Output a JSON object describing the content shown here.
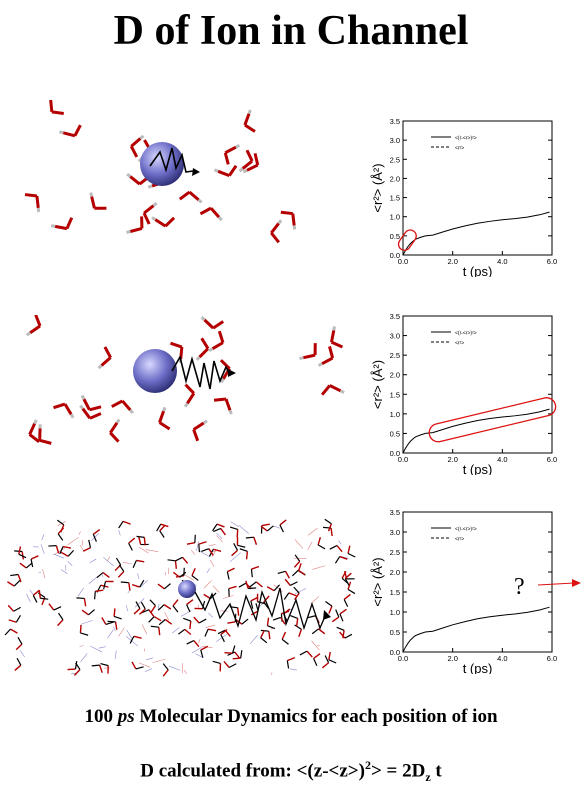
{
  "title": "D of Ion in Channel",
  "caption_line1": {
    "num": "100",
    "ps": "ps",
    "rest": "Molecular Dynamics for each position of ion"
  },
  "caption_line2": {
    "prefix": "D calculated from: <(z-<z>)",
    "sup": "2",
    "mid": "> = 2D",
    "sub": "z",
    "suffix": " t"
  },
  "question_mark": "?",
  "colors": {
    "ion": "#6e6ec8",
    "oxygen": "#b40000",
    "hydrogen": "#bbbbbb",
    "highlight": "#dd1111",
    "arrow": "#dd1111"
  },
  "chart_data": [
    {
      "type": "line",
      "xlabel": "t (ps)",
      "ylabel": "<r²> (Å²)",
      "xlim": [
        0,
        6
      ],
      "ylim": [
        0,
        3.5
      ],
      "xticks": [
        "0.0",
        "2.0",
        "4.0",
        "6.0"
      ],
      "yticks": [
        "0.0",
        "0.5",
        "1.0",
        "1.5",
        "2.0",
        "2.5",
        "3.0",
        "3.5"
      ],
      "legend": [
        "<(r-<r>)²>",
        "<r²>"
      ],
      "legend_position": "top-left",
      "series": [
        {
          "name": "<(r-<r>)²>",
          "x": [
            0,
            0.1,
            0.2,
            0.3,
            0.4,
            0.5,
            0.7,
            0.9,
            1.2,
            1.6,
            2.0,
            2.5,
            3.0,
            3.5,
            4.0,
            4.5,
            5.0,
            5.5,
            5.9
          ],
          "y": [
            0,
            0.12,
            0.22,
            0.3,
            0.36,
            0.41,
            0.46,
            0.5,
            0.52,
            0.6,
            0.68,
            0.76,
            0.83,
            0.88,
            0.92,
            0.95,
            0.99,
            1.05,
            1.12
          ]
        }
      ],
      "highlight": "early-time"
    },
    {
      "type": "line",
      "xlabel": "t (ps)",
      "ylabel": "<r²> (Å²)",
      "xlim": [
        0,
        6
      ],
      "ylim": [
        0,
        3.5
      ],
      "xticks": [
        "0.0",
        "2.0",
        "4.0",
        "6.0"
      ],
      "yticks": [
        "0.0",
        "0.5",
        "1.0",
        "1.5",
        "2.0",
        "2.5",
        "3.0",
        "3.5"
      ],
      "legend": [
        "<(r-<r>)²>",
        "<r²>"
      ],
      "legend_position": "top-left",
      "series": [
        {
          "name": "<(r-<r>)²>",
          "x": [
            0,
            0.1,
            0.2,
            0.3,
            0.4,
            0.5,
            0.7,
            0.9,
            1.2,
            1.6,
            2.0,
            2.5,
            3.0,
            3.5,
            4.0,
            4.5,
            5.0,
            5.5,
            5.9
          ],
          "y": [
            0,
            0.12,
            0.22,
            0.3,
            0.36,
            0.41,
            0.46,
            0.5,
            0.52,
            0.6,
            0.68,
            0.76,
            0.83,
            0.88,
            0.92,
            0.95,
            0.99,
            1.05,
            1.12
          ]
        }
      ],
      "highlight": "long-time"
    },
    {
      "type": "line",
      "xlabel": "t (ps)",
      "ylabel": "<r²> (Å²)",
      "xlim": [
        0,
        6
      ],
      "ylim": [
        0,
        3.5
      ],
      "xticks": [
        "0.0",
        "2.0",
        "4.0",
        "6.0"
      ],
      "yticks": [
        "0.0",
        "0.5",
        "1.0",
        "1.5",
        "2.0",
        "2.5",
        "3.0",
        "3.5"
      ],
      "legend": [
        "<(r-<r>)²>",
        "<r²>"
      ],
      "legend_position": "top-left",
      "series": [
        {
          "name": "<(r-<r>)²>",
          "x": [
            0,
            0.1,
            0.2,
            0.3,
            0.4,
            0.5,
            0.7,
            0.9,
            1.2,
            1.6,
            2.0,
            2.5,
            3.0,
            3.5,
            4.0,
            4.5,
            5.0,
            5.5,
            5.9
          ],
          "y": [
            0,
            0.12,
            0.22,
            0.3,
            0.36,
            0.41,
            0.46,
            0.5,
            0.52,
            0.6,
            0.68,
            0.76,
            0.83,
            0.88,
            0.92,
            0.95,
            0.99,
            1.05,
            1.12
          ]
        }
      ],
      "highlight": "none"
    }
  ]
}
